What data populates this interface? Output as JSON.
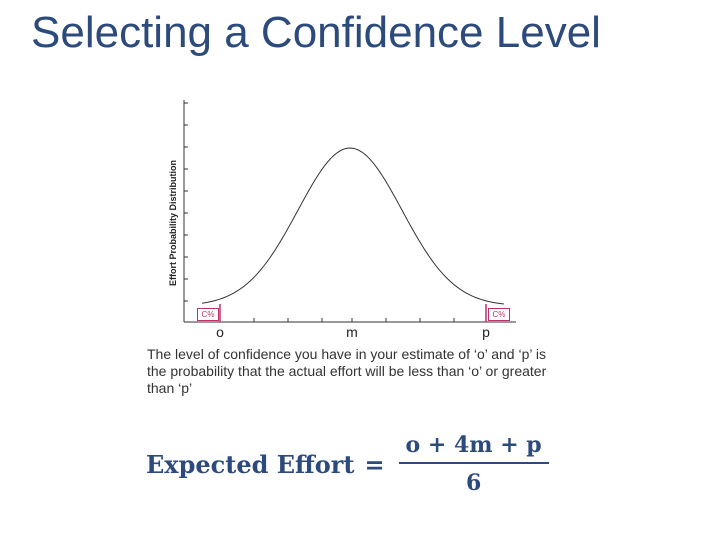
{
  "title": "Selecting a Confidence Level",
  "diagram": {
    "ylabel": "Effort Probability Distribution",
    "x_labels": [
      "o",
      "m",
      "p"
    ],
    "tail_labels": [
      "C%",
      "C%"
    ],
    "accent_color": "#c0306a",
    "curve_color": "#333333"
  },
  "caption": "The level of confidence you have in your estimate of ‘o’ and ‘p’ is the probability that the actual effort will be less than ‘o’  or greater than ‘p’",
  "formula": {
    "lhs": "Expected Effort",
    "equals": "=",
    "numerator": "o + 4m + p",
    "denominator": "6"
  },
  "colors": {
    "title": "#2c4a7c",
    "formula": "#2c4a7c"
  }
}
